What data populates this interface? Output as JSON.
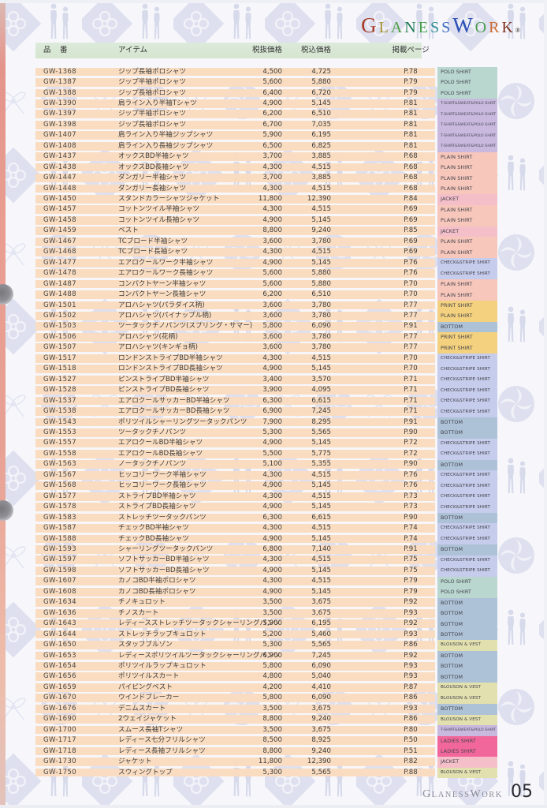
{
  "header": {
    "logo_letters": [
      {
        "ch": "G",
        "color": "#a53b2a",
        "big": true
      },
      {
        "ch": "L",
        "color": "#a8932f",
        "big": false
      },
      {
        "ch": "A",
        "color": "#4f9d45",
        "big": false
      },
      {
        "ch": "N",
        "color": "#1f7a55",
        "big": false
      },
      {
        "ch": "E",
        "color": "#48a04e",
        "big": false
      },
      {
        "ch": "S",
        "color": "#2f8f96",
        "big": false
      },
      {
        "ch": "S",
        "color": "#3b6cbf",
        "big": false
      },
      {
        "ch": "W",
        "color": "#2b50b5",
        "big": true
      },
      {
        "ch": "O",
        "color": "#4b9d4f",
        "big": false
      },
      {
        "ch": "R",
        "color": "#cf6b2d",
        "big": false
      },
      {
        "ch": "K",
        "color": "#7e3322",
        "big": false
      }
    ],
    "registered_mark": "®"
  },
  "table": {
    "columns": {
      "code": "品　番",
      "item": "アイテム",
      "price_ex": "税抜価格",
      "price_inc": "税込価格",
      "page": "掲載ページ"
    },
    "categories": {
      "polo": {
        "label": "POLO SHIRT",
        "color": "#b9d7cf"
      },
      "tsp": {
        "label": "T-SHIRT&SWEAT&POLO SHIRT",
        "color": "#c9b9df"
      },
      "plain": {
        "label": "PLAIN SHIRT",
        "color": "#f8c7bb"
      },
      "plain_on_yellow": {
        "label": "PLAIN SHIRT",
        "color": "#f4d17e"
      },
      "jacket": {
        "label": "JACKET",
        "color": "#f5bfca"
      },
      "check": {
        "label": "CHECK&STRIPE SHIRT",
        "color": "#c6cceb"
      },
      "print": {
        "label": "PRINT SHIRT",
        "color": "#f4d17e"
      },
      "bottom": {
        "label": "BOTTOM",
        "color": "#adc2d7"
      },
      "blouson": {
        "label": "BLOUSON & VEST",
        "color": "#e2e0ae"
      },
      "ladies": {
        "label": "LADIES SHIRT",
        "color": "#f2679b"
      }
    },
    "rows": [
      {
        "code": "GW-1368",
        "item": "ジップ長袖ポロシャツ",
        "price_ex": "4,500",
        "price_inc": "4,725",
        "page": "P.78",
        "cat": "polo"
      },
      {
        "code": "GW-1387",
        "item": "ジップ半袖ポロシャツ",
        "price_ex": "5,600",
        "price_inc": "5,880",
        "page": "P.79",
        "cat": "polo"
      },
      {
        "code": "GW-1388",
        "item": "ジップ長袖ポロシャツ",
        "price_ex": "6,400",
        "price_inc": "6,720",
        "page": "P.79",
        "cat": "polo"
      },
      {
        "code": "GW-1390",
        "item": "肩ライン入り半袖Tシャツ",
        "price_ex": "4,900",
        "price_inc": "5,145",
        "page": "P.81",
        "cat": "tsp"
      },
      {
        "code": "GW-1397",
        "item": "ジップ半袖ポロシャツ",
        "price_ex": "6,200",
        "price_inc": "6,510",
        "page": "P.81",
        "cat": "tsp"
      },
      {
        "code": "GW-1398",
        "item": "ジップ長袖ポロシャツ",
        "price_ex": "6,700",
        "price_inc": "7,035",
        "page": "P.81",
        "cat": "tsp"
      },
      {
        "code": "GW-1407",
        "item": "肩ライン入り半袖ジップシャツ",
        "price_ex": "5,900",
        "price_inc": "6,195",
        "page": "P.81",
        "cat": "tsp"
      },
      {
        "code": "GW-1408",
        "item": "肩ライン入り長袖ジップシャツ",
        "price_ex": "6,500",
        "price_inc": "6,825",
        "page": "P.81",
        "cat": "tsp"
      },
      {
        "code": "GW-1437",
        "item": "オックスBD半袖シャツ",
        "price_ex": "3,700",
        "price_inc": "3,885",
        "page": "P.68",
        "cat": "plain"
      },
      {
        "code": "GW-1438",
        "item": "オックスBD長袖シャツ",
        "price_ex": "4,300",
        "price_inc": "4,515",
        "page": "P.68",
        "cat": "plain"
      },
      {
        "code": "GW-1447",
        "item": "ダンガリー半袖シャツ",
        "price_ex": "3,700",
        "price_inc": "3,885",
        "page": "P.68",
        "cat": "plain"
      },
      {
        "code": "GW-1448",
        "item": "ダンガリー長袖シャツ",
        "price_ex": "4,300",
        "price_inc": "4,515",
        "page": "P.68",
        "cat": "plain"
      },
      {
        "code": "GW-1450",
        "item": "スタンドカラーシャツジャケット",
        "price_ex": "11,800",
        "price_inc": "12,390",
        "page": "P.84",
        "cat": "jacket"
      },
      {
        "code": "GW-1457",
        "item": "コットンツイル半袖シャツ",
        "price_ex": "4,300",
        "price_inc": "4,515",
        "page": "P.69",
        "cat": "plain"
      },
      {
        "code": "GW-1458",
        "item": "コットンツイル長袖シャツ",
        "price_ex": "4,900",
        "price_inc": "5,145",
        "page": "P.69",
        "cat": "plain"
      },
      {
        "code": "GW-1459",
        "item": "ベスト",
        "price_ex": "8,800",
        "price_inc": "9,240",
        "page": "P.85",
        "cat": "jacket"
      },
      {
        "code": "GW-1467",
        "item": "TCブロード半袖シャツ",
        "price_ex": "3,600",
        "price_inc": "3,780",
        "page": "P.69",
        "cat": "plain"
      },
      {
        "code": "GW-1468",
        "item": "TCブロード長袖シャツ",
        "price_ex": "4,300",
        "price_inc": "4,515",
        "page": "P.69",
        "cat": "plain"
      },
      {
        "code": "GW-1477",
        "item": "エアロクールワーク半袖シャツ",
        "price_ex": "4,900",
        "price_inc": "5,145",
        "page": "P.76",
        "cat": "check"
      },
      {
        "code": "GW-1478",
        "item": "エアロクールワーク長袖シャツ",
        "price_ex": "5,600",
        "price_inc": "5,880",
        "page": "P.76",
        "cat": "check"
      },
      {
        "code": "GW-1487",
        "item": "コンパクトヤーン半袖シャツ",
        "price_ex": "5,600",
        "price_inc": "5,880",
        "page": "P.70",
        "cat": "plain"
      },
      {
        "code": "GW-1488",
        "item": "コンパクトヤーン長袖シャツ",
        "price_ex": "6,200",
        "price_inc": "6,510",
        "page": "P.70",
        "cat": "plain"
      },
      {
        "code": "GW-1501",
        "item": "アロハシャツ(パラダイス柄)",
        "price_ex": "3,600",
        "price_inc": "3,780",
        "page": "P.77",
        "cat": "print"
      },
      {
        "code": "GW-1502",
        "item": "アロハシャツ(パイナップル柄)",
        "price_ex": "3,600",
        "price_inc": "3,780",
        "page": "P.77",
        "cat": "plain_on_yellow"
      },
      {
        "code": "GW-1503",
        "item": "ツータックチノパンツ(スプリング・サマー)",
        "price_ex": "5,800",
        "price_inc": "6,090",
        "page": "P.91",
        "cat": "bottom"
      },
      {
        "code": "GW-1506",
        "item": "アロハシャツ(花柄)",
        "price_ex": "3,600",
        "price_inc": "3,780",
        "page": "P.77",
        "cat": "print"
      },
      {
        "code": "GW-1507",
        "item": "アロハシャツ(キンギョ柄)",
        "price_ex": "3,600",
        "price_inc": "3,780",
        "page": "P.77",
        "cat": "print"
      },
      {
        "code": "GW-1517",
        "item": "ロンドンストライプBD半袖シャツ",
        "price_ex": "4,300",
        "price_inc": "4,515",
        "page": "P.70",
        "cat": "check"
      },
      {
        "code": "GW-1518",
        "item": "ロンドンストライプBD長袖シャツ",
        "price_ex": "4,900",
        "price_inc": "5,145",
        "page": "P.70",
        "cat": "check"
      },
      {
        "code": "GW-1527",
        "item": "ピンストライプBD半袖シャツ",
        "price_ex": "3,400",
        "price_inc": "3,570",
        "page": "P.71",
        "cat": "check"
      },
      {
        "code": "GW-1528",
        "item": "ピンストライプBD長袖シャツ",
        "price_ex": "3,900",
        "price_inc": "4,095",
        "page": "P.71",
        "cat": "check"
      },
      {
        "code": "GW-1537",
        "item": "エアロクールサッカーBD半袖シャツ",
        "price_ex": "6,300",
        "price_inc": "6,615",
        "page": "P.71",
        "cat": "check"
      },
      {
        "code": "GW-1538",
        "item": "エアロクールサッカーBD長袖シャツ",
        "price_ex": "6,900",
        "price_inc": "7,245",
        "page": "P.71",
        "cat": "check"
      },
      {
        "code": "GW-1543",
        "item": "ポリツイルシャーリングツータックパンツ",
        "price_ex": "7,900",
        "price_inc": "8,295",
        "page": "P.91",
        "cat": "bottom"
      },
      {
        "code": "GW-1553",
        "item": "ツータックチノパンツ",
        "price_ex": "5,300",
        "price_inc": "5,565",
        "page": "P.90",
        "cat": "bottom"
      },
      {
        "code": "GW-1557",
        "item": "エアロクールBD半袖シャツ",
        "price_ex": "4,900",
        "price_inc": "5,145",
        "page": "P.72",
        "cat": "check"
      },
      {
        "code": "GW-1558",
        "item": "エアロクールBD長袖シャツ",
        "price_ex": "5,500",
        "price_inc": "5,775",
        "page": "P.72",
        "cat": "check"
      },
      {
        "code": "GW-1563",
        "item": "ノータックチノパンツ",
        "price_ex": "5,100",
        "price_inc": "5,355",
        "page": "P.90",
        "cat": "bottom"
      },
      {
        "code": "GW-1567",
        "item": "ヒッコリーワーク半袖シャツ",
        "price_ex": "4,300",
        "price_inc": "4,515",
        "page": "P.76",
        "cat": "check"
      },
      {
        "code": "GW-1568",
        "item": "ヒッコリーワーク長袖シャツ",
        "price_ex": "4,900",
        "price_inc": "5,145",
        "page": "P.76",
        "cat": "check"
      },
      {
        "code": "GW-1577",
        "item": "ストライプBD半袖シャツ",
        "price_ex": "4,300",
        "price_inc": "4,515",
        "page": "P.73",
        "cat": "check"
      },
      {
        "code": "GW-1578",
        "item": "ストライプBD長袖シャツ",
        "price_ex": "4,900",
        "price_inc": "5,145",
        "page": "P.73",
        "cat": "check"
      },
      {
        "code": "GW-1583",
        "item": "ストレッチツータックパンツ",
        "price_ex": "6,300",
        "price_inc": "6,615",
        "page": "P.90",
        "cat": "bottom"
      },
      {
        "code": "GW-1587",
        "item": "チェックBD半袖シャツ",
        "price_ex": "4,300",
        "price_inc": "4,515",
        "page": "P.74",
        "cat": "check"
      },
      {
        "code": "GW-1588",
        "item": "チェックBD長袖シャツ",
        "price_ex": "4,900",
        "price_inc": "5,145",
        "page": "P.74",
        "cat": "check"
      },
      {
        "code": "GW-1593",
        "item": "シャーリングツータックパンツ",
        "price_ex": "6,800",
        "price_inc": "7,140",
        "page": "P.91",
        "cat": "bottom"
      },
      {
        "code": "GW-1597",
        "item": "ソフトサッカーBD半袖シャツ",
        "price_ex": "4,300",
        "price_inc": "4,515",
        "page": "P.75",
        "cat": "check"
      },
      {
        "code": "GW-1598",
        "item": "ソフトサッカーBD長袖シャツ",
        "price_ex": "4,900",
        "price_inc": "5,145",
        "page": "P.75",
        "cat": "check"
      },
      {
        "code": "GW-1607",
        "item": "カノコBD半袖ポロシャツ",
        "price_ex": "4,300",
        "price_inc": "4,515",
        "page": "P.79",
        "cat": "polo"
      },
      {
        "code": "GW-1608",
        "item": "カノコBD長袖ポロシャツ",
        "price_ex": "4,900",
        "price_inc": "5,145",
        "page": "P.79",
        "cat": "polo"
      },
      {
        "code": "GW-1634",
        "item": "チノキュロット",
        "price_ex": "3,500",
        "price_inc": "3,675",
        "page": "P.92",
        "cat": "bottom"
      },
      {
        "code": "GW-1636",
        "item": "チノスカート",
        "price_ex": "3,500",
        "price_inc": "3,675",
        "page": "P.93",
        "cat": "bottom"
      },
      {
        "code": "GW-1643",
        "item": "レディースストレッチツータックシャーリングパンツ",
        "price_ex": "5,900",
        "price_inc": "6,195",
        "page": "P.92",
        "cat": "bottom"
      },
      {
        "code": "GW-1644",
        "item": "ストレッチラップキュロット",
        "price_ex": "5,200",
        "price_inc": "5,460",
        "page": "P.93",
        "cat": "bottom"
      },
      {
        "code": "GW-1650",
        "item": "スタッフブルゾン",
        "price_ex": "5,300",
        "price_inc": "5,565",
        "page": "P.86",
        "cat": "blouson"
      },
      {
        "code": "GW-1653",
        "item": "レディースポリツイルツータックシャーリングパンツ",
        "price_ex": "6,900",
        "price_inc": "7,245",
        "page": "P.92",
        "cat": "bottom"
      },
      {
        "code": "GW-1654",
        "item": "ポリツイルラップキュロット",
        "price_ex": "5,800",
        "price_inc": "6,090",
        "page": "P.93",
        "cat": "bottom"
      },
      {
        "code": "GW-1656",
        "item": "ポリツイルスカート",
        "price_ex": "4,800",
        "price_inc": "5,040",
        "page": "P.93",
        "cat": "bottom"
      },
      {
        "code": "GW-1659",
        "item": "パイピングベスト",
        "price_ex": "4,200",
        "price_inc": "4,410",
        "page": "P.87",
        "cat": "blouson"
      },
      {
        "code": "GW-1670",
        "item": "ウインドブレーカー",
        "price_ex": "5,800",
        "price_inc": "6,090",
        "page": "P.86",
        "cat": "blouson"
      },
      {
        "code": "GW-1676",
        "item": "デニムスカート",
        "price_ex": "3,500",
        "price_inc": "3,675",
        "page": "P.93",
        "cat": "bottom"
      },
      {
        "code": "GW-1690",
        "item": "2ウェイジャケット",
        "price_ex": "8,800",
        "price_inc": "9,240",
        "page": "P.86",
        "cat": "blouson"
      },
      {
        "code": "GW-1700",
        "item": "スムース長袖Tシャツ",
        "price_ex": "3,500",
        "price_inc": "3,675",
        "page": "P.80",
        "cat": "tsp"
      },
      {
        "code": "GW-1717",
        "item": "レディース七分フリルシャツ",
        "price_ex": "8,500",
        "price_inc": "8,925",
        "page": "P.50",
        "cat": "ladies"
      },
      {
        "code": "GW-1718",
        "item": "レディース長袖フリルシャツ",
        "price_ex": "8,800",
        "price_inc": "9,240",
        "page": "P.51",
        "cat": "ladies"
      },
      {
        "code": "GW-1730",
        "item": "ジャケット",
        "price_ex": "11,800",
        "price_inc": "12,390",
        "page": "P.82",
        "cat": "jacket"
      },
      {
        "code": "GW-1750",
        "item": "スウィングトップ",
        "price_ex": "5,300",
        "price_inc": "5,565",
        "page": "P.88",
        "cat": "blouson"
      }
    ]
  },
  "footer": {
    "logo_text": "GLANESSWORK",
    "page_number": "05"
  }
}
